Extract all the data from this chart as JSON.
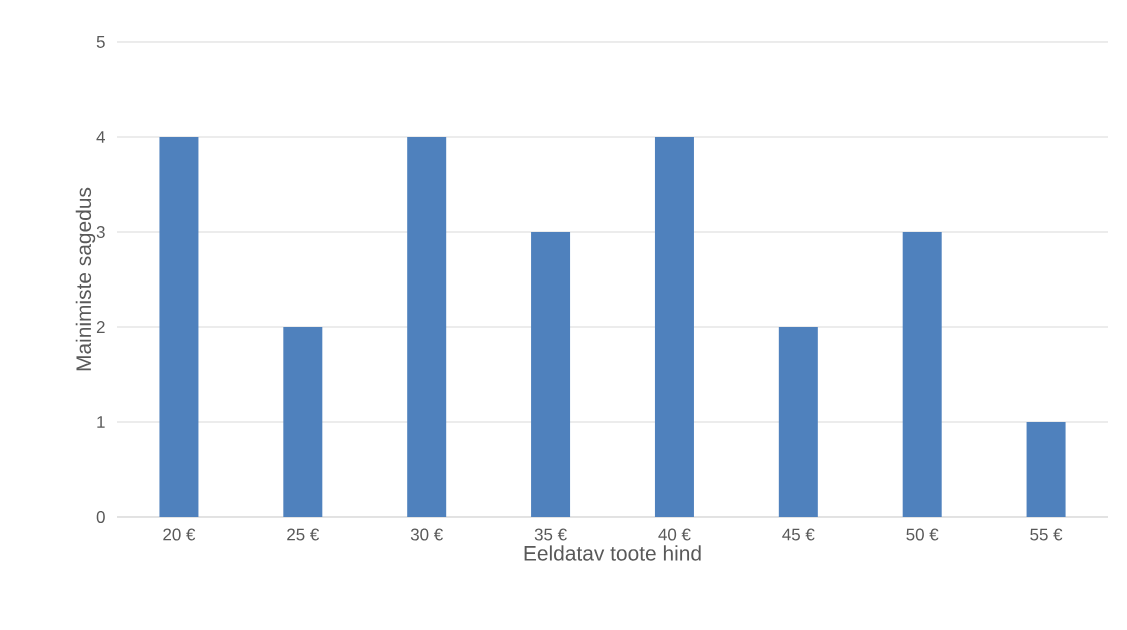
{
  "chart_data": {
    "type": "bar",
    "xlabel": "Eeldatav toote hind",
    "ylabel": "Mainimiste sagedus",
    "categories": [
      "20 €",
      "25 €",
      "30 €",
      "35 €",
      "40 €",
      "45 €",
      "50 €",
      "55 €"
    ],
    "values": [
      4,
      2,
      4,
      3,
      4,
      2,
      3,
      1
    ],
    "color": "#4f81bd",
    "ylim": [
      0,
      5
    ],
    "yticks": [
      0,
      1,
      2,
      3,
      4,
      5
    ],
    "grid": "y"
  }
}
